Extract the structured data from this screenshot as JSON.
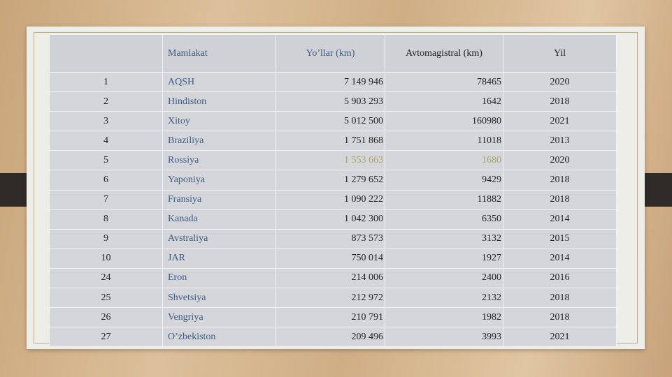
{
  "table": {
    "header": [
      "",
      "Mamlakat",
      "Yo’llar (km)",
      "Avtomagistral (km)",
      "Yil"
    ],
    "rows": [
      [
        "1",
        "AQSH",
        "7 149 946",
        "78465",
        "2020"
      ],
      [
        "2",
        "Hindiston",
        "5 903 293",
        "1642",
        "2018"
      ],
      [
        "3",
        "Xitoy",
        "5 012 500",
        "160980",
        "2021"
      ],
      [
        "4",
        "Braziliya",
        "1 751 868",
        "11018",
        "2013"
      ],
      [
        "5",
        "Rossiya",
        "1 553 663",
        "1680",
        "2020"
      ],
      [
        "6",
        "Yaponiya",
        "1 279 652",
        "9429",
        "2018"
      ],
      [
        "7",
        "Fransiya",
        "1 090 222",
        "11882",
        "2018"
      ],
      [
        "8",
        "Kanada",
        "1 042 300",
        "6350",
        "2014"
      ],
      [
        "9",
        "Avstraliya",
        "873 573",
        "3132",
        "2015"
      ],
      [
        "10",
        "JAR",
        "750 014",
        "1927",
        "2014"
      ],
      [
        "24",
        "Eron",
        "214 006",
        "2400",
        "2016"
      ],
      [
        "25",
        "Shvetsiya",
        "212 972",
        "2132",
        "2018"
      ],
      [
        "26",
        "Vengriya",
        "210 791",
        "1982",
        "2018"
      ],
      [
        "27",
        "O’zbekiston",
        "209 496",
        "3993",
        "2021"
      ]
    ]
  }
}
